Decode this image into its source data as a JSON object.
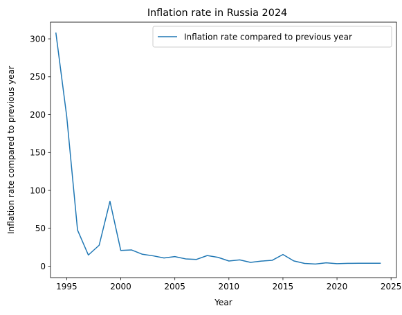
{
  "chart_data": {
    "type": "line",
    "title": "Inflation rate in Russia 2024",
    "xlabel": "Year",
    "ylabel": "Inflation rate compared to previous year",
    "xlim": [
      1993.5,
      2025.5
    ],
    "ylim": [
      -15,
      322
    ],
    "xticks": [
      1995,
      2000,
      2005,
      2010,
      2015,
      2020,
      2025
    ],
    "yticks": [
      0,
      50,
      100,
      150,
      200,
      250,
      300
    ],
    "legend_position": "top-right",
    "grid": false,
    "series": [
      {
        "name": "Inflation rate compared to previous year",
        "color": "#1f77b4",
        "x": [
          1994,
          1995,
          1996,
          1997,
          1998,
          1999,
          2000,
          2001,
          2002,
          2003,
          2004,
          2005,
          2006,
          2007,
          2008,
          2009,
          2010,
          2011,
          2012,
          2013,
          2014,
          2015,
          2016,
          2017,
          2018,
          2019,
          2020,
          2021,
          2022,
          2023,
          2024
        ],
        "y": [
          307.6,
          197.5,
          47.7,
          14.8,
          27.7,
          85.7,
          20.8,
          21.5,
          15.8,
          13.7,
          10.9,
          12.7,
          9.7,
          9.0,
          14.1,
          11.7,
          6.9,
          8.4,
          5.1,
          6.8,
          7.8,
          15.5,
          7.0,
          3.7,
          2.9,
          4.5,
          3.4,
          3.8,
          3.9,
          3.9,
          3.9
        ]
      }
    ]
  }
}
